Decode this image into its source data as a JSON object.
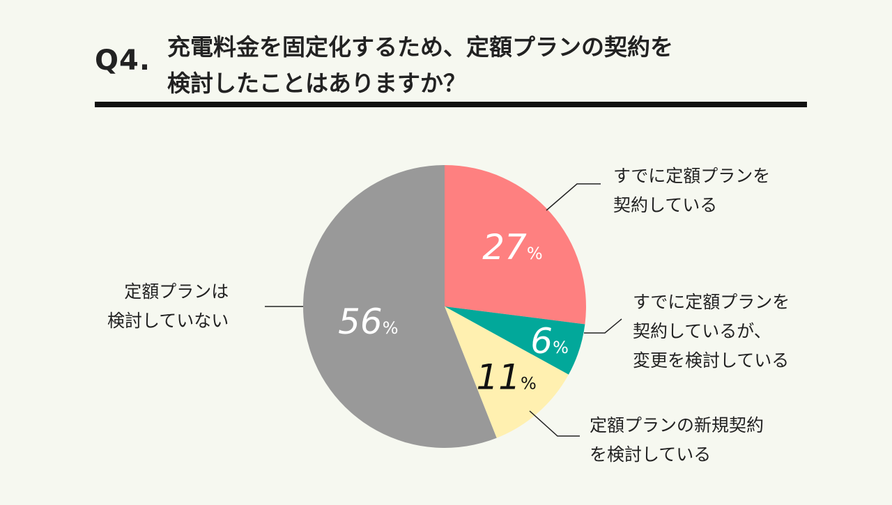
{
  "header": {
    "question_number": "Q4.",
    "title_line1": "充電料金を固定化するため、定額プランの契約を",
    "title_line2": "検討したことはありますか？"
  },
  "chart_data": {
    "type": "pie",
    "start_angle_deg": 0,
    "direction": "clockwise",
    "slices": [
      {
        "label_lines": [
          "すでに定額プランを",
          "契約している"
        ],
        "value": 27,
        "color": "#fe8080",
        "text_color": "#ffffff"
      },
      {
        "label_lines": [
          "すでに定額プランを",
          "契約しているが、",
          "変更を検討している"
        ],
        "value": 6,
        "color": "#02a89a",
        "text_color": "#ffffff"
      },
      {
        "label_lines": [
          "定額プランの新規契約",
          "を検討している"
        ],
        "value": 11,
        "color": "#fff0b0",
        "text_color": "#111111"
      },
      {
        "label_lines": [
          "定額プランは",
          "検討していない"
        ],
        "value": 56,
        "color": "#999999",
        "text_color": "#ffffff"
      }
    ],
    "value_suffix": "%"
  }
}
